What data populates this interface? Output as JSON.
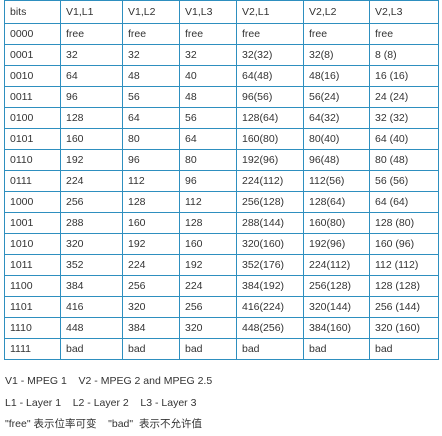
{
  "table": {
    "headers": [
      "bits",
      "V1,L1",
      "V1,L2",
      "V1,L3",
      "V2,L1",
      "V2,L2",
      "V2,L3"
    ],
    "rows": [
      [
        "0000",
        "free",
        "free",
        "free",
        "free",
        "free",
        "free"
      ],
      [
        "0001",
        "32",
        "32",
        "32",
        "32(32)",
        "32(8)",
        "8 (8)"
      ],
      [
        "0010",
        "64",
        "48",
        "40",
        "64(48)",
        "48(16)",
        "16 (16)"
      ],
      [
        "0011",
        "96",
        "56",
        "48",
        "96(56)",
        "56(24)",
        "24 (24)"
      ],
      [
        "0100",
        "128",
        "64",
        "56",
        "128(64)",
        "64(32)",
        "32 (32)"
      ],
      [
        "0101",
        "160",
        "80",
        "64",
        "160(80)",
        "80(40)",
        "64 (40)"
      ],
      [
        "0110",
        "192",
        "96",
        "80",
        "192(96)",
        "96(48)",
        "80 (48)"
      ],
      [
        "0111",
        "224",
        "112",
        "96",
        "224(112)",
        "112(56)",
        "56 (56)"
      ],
      [
        "1000",
        "256",
        "128",
        "112",
        "256(128)",
        "128(64)",
        "64 (64)"
      ],
      [
        "1001",
        "288",
        "160",
        "128",
        "288(144)",
        "160(80)",
        "128 (80)"
      ],
      [
        "1010",
        "320",
        "192",
        "160",
        "320(160)",
        "192(96)",
        "160 (96)"
      ],
      [
        "1011",
        "352",
        "224",
        "192",
        "352(176)",
        "224(112)",
        "112 (112)"
      ],
      [
        "1100",
        "384",
        "256",
        "224",
        "384(192)",
        "256(128)",
        "128 (128)"
      ],
      [
        "1101",
        "416",
        "320",
        "256",
        "416(224)",
        "320(144)",
        "256 (144)"
      ],
      [
        "1110",
        "448",
        "384",
        "320",
        "448(256)",
        "384(160)",
        "320 (160)"
      ],
      [
        "1111",
        "bad",
        "bad",
        "bad",
        "bad",
        "bad",
        "bad"
      ]
    ]
  },
  "notes": [
    "V1 - MPEG 1    V2 - MPEG 2 and MPEG 2.5",
    "L1 - Layer 1    L2 - Layer 2    L3 - Layer 3",
    "\"free\" 表示位率可变    \"bad\"  表示不允许值"
  ]
}
